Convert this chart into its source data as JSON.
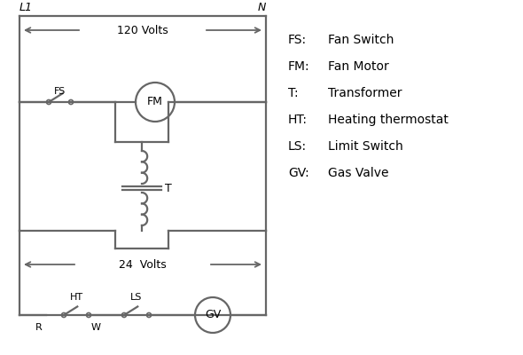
{
  "line_color": "#666666",
  "text_color": "#000000",
  "bg_color": "#ffffff",
  "legend_items": [
    [
      "FS:",
      "Fan Switch"
    ],
    [
      "FM:",
      "Fan Motor"
    ],
    [
      "T:",
      "Transformer"
    ],
    [
      "HT:",
      "Heating thermostat"
    ],
    [
      "LS:",
      "Limit Switch"
    ],
    [
      "GV:",
      "Gas Valve"
    ]
  ],
  "L1": "L1",
  "N": "N",
  "volts_120": "120 Volts",
  "volts_24": "24  Volts",
  "T_label": "T",
  "FS_label": "FS",
  "FM_label": "FM",
  "R_label": "R",
  "W_label": "W",
  "HT_label": "HT",
  "LS_label": "LS",
  "GV_label": "GV"
}
